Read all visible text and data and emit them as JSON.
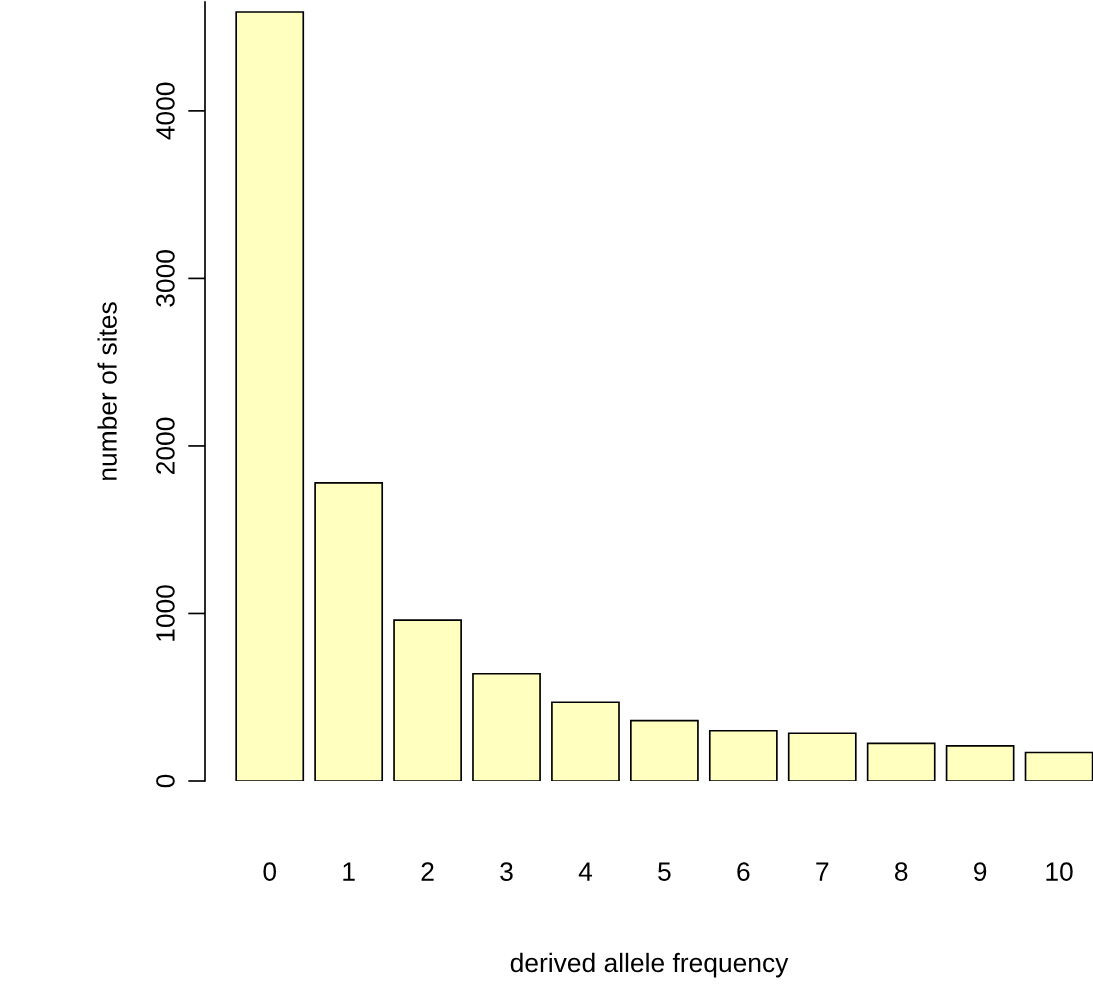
{
  "chart_data": {
    "type": "bar",
    "xlabel": "derived allele frequency",
    "ylabel": "number of sites",
    "categories": [
      "0",
      "1",
      "2",
      "3",
      "4",
      "5",
      "6",
      "7",
      "8",
      "9",
      "10"
    ],
    "values": [
      4590,
      1780,
      960,
      640,
      470,
      360,
      300,
      285,
      225,
      210,
      170
    ],
    "color": "#ffffbf",
    "ylim": [
      0,
      4650
    ],
    "yticks": [
      0,
      1000,
      2000,
      3000,
      4000
    ]
  }
}
